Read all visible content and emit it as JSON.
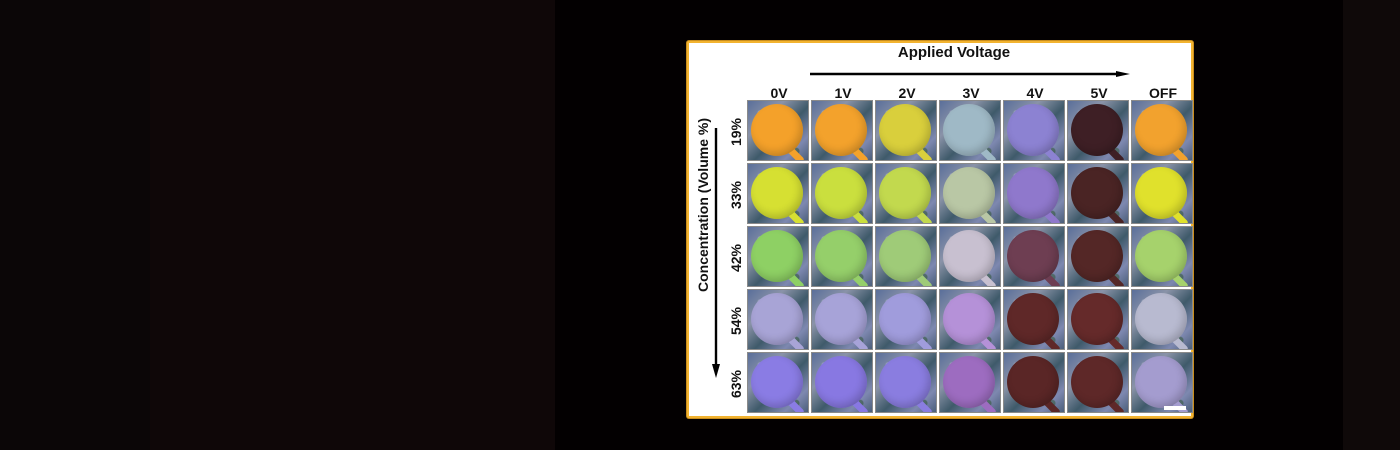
{
  "figure": {
    "title": "Applied Voltage",
    "y_axis_label": "Concentration (Volume %)",
    "columns": [
      "0V",
      "1V",
      "2V",
      "3V",
      "4V",
      "5V",
      "OFF"
    ],
    "rows": [
      "19%",
      "33%",
      "42%",
      "54%",
      "63%"
    ],
    "scale_bar": true,
    "colors": {
      "panel_border": "#f2b330",
      "background": "#030001"
    },
    "tile_colors": [
      [
        "#f4a12a",
        "#f3a22c",
        "#d9cf3c",
        "#9fb9c6",
        "#8c82d2",
        "#3e1f25",
        "#f2a22e"
      ],
      [
        "#d6e032",
        "#cadf3e",
        "#c2d94e",
        "#b9c7a5",
        "#8f78cc",
        "#4a2424",
        "#e0e12c"
      ],
      [
        "#8ed064",
        "#95cf6a",
        "#9fcb78",
        "#c8c0d0",
        "#6e3e52",
        "#542726",
        "#a6d26c"
      ],
      [
        "#a8a4d6",
        "#a7a3d8",
        "#a09cdc",
        "#b591d8",
        "#5f2828",
        "#652a2a",
        "#b8bad0"
      ],
      [
        "#8a7ce4",
        "#8878e2",
        "#8a7de0",
        "#9d6cc0",
        "#5a2626",
        "#5e2828",
        "#a49ccf"
      ]
    ]
  }
}
